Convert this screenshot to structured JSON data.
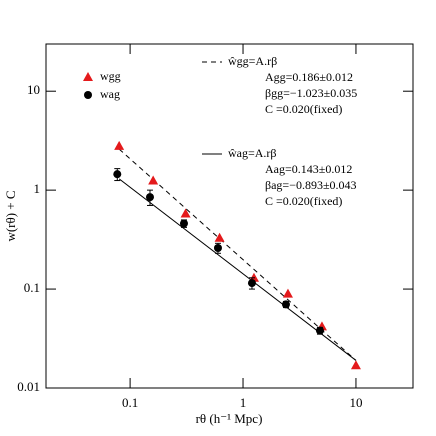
{
  "chart_data": {
    "type": "scatter",
    "xlabel": "rθ (h⁻¹ Mpc)",
    "ylabel": "w(rθ) + C",
    "xscale": "log",
    "yscale": "log",
    "xlim": [
      0.018,
      32
    ],
    "ylim": [
      0.01,
      30
    ],
    "xticks": [
      0.1,
      1,
      10
    ],
    "yticks": [
      0.01,
      0.1,
      1,
      10
    ],
    "series": [
      {
        "name": "wgg",
        "color": "#e41a1c",
        "marker": "triangle",
        "x": [
          0.08,
          0.16,
          0.31,
          0.62,
          1.25,
          2.5,
          5,
          10
        ],
        "values": [
          2.8,
          1.25,
          0.58,
          0.33,
          0.13,
          0.09,
          0.042,
          0.017
        ]
      },
      {
        "name": "wag",
        "color": "#000000",
        "marker": "circle",
        "x": [
          0.077,
          0.15,
          0.3,
          0.6,
          1.2,
          2.4,
          4.8
        ],
        "values": [
          1.45,
          0.85,
          0.46,
          0.26,
          0.115,
          0.07,
          0.038
        ],
        "errors": [
          0.2,
          0.15,
          0.04,
          0.03,
          0.015,
          0.005,
          0.003
        ]
      }
    ],
    "fits": [
      {
        "style": "dashed",
        "x": [
          0.08,
          10
        ],
        "values": [
          2.6,
          0.019
        ],
        "text": [
          "ŵgg=A.rβ",
          "Agg=0.186±0.012",
          "βgg=−1.023±0.035",
          "C =0.020(fixed)"
        ]
      },
      {
        "style": "solid",
        "x": [
          0.08,
          10
        ],
        "values": [
          1.3,
          0.019
        ],
        "text": [
          "ŵag=A.rβ",
          "Aag=0.143±0.012",
          "βag=−0.893±0.043",
          "C =0.020(fixed)"
        ]
      }
    ]
  }
}
